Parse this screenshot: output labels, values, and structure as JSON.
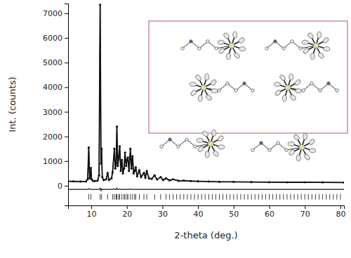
{
  "chart_data": {
    "type": "line",
    "x_label": "2-theta (deg.)",
    "y_label": "Int. (counts)",
    "xlim": [
      3.5,
      81
    ],
    "xticks": [
      10,
      20,
      30,
      40,
      50,
      60,
      70,
      80
    ],
    "ylim": [
      -800,
      7400
    ],
    "yticks": [
      0,
      1000,
      2000,
      3000,
      4000,
      5000,
      6000,
      7000
    ],
    "grid": false,
    "color": "#111111",
    "series": [
      {
        "type": "scatter",
        "marker": "circle",
        "color": "#111111",
        "x": [
          3.5,
          5,
          7,
          8.5,
          9.0,
          9.3,
          9.55,
          9.75,
          9.9,
          10.1,
          10.5,
          11,
          11.8,
          12.2,
          12.5,
          12.75,
          12.9,
          13.1,
          13.5,
          14.2,
          14.6,
          15,
          15.7,
          16.0,
          16.5,
          16.75,
          17.0,
          17.2,
          17.45,
          17.7,
          18.0,
          18.3,
          18.6,
          18.9,
          19.2,
          19.5,
          19.8,
          20.05,
          20.3,
          20.6,
          21.0,
          21.3,
          21.6,
          21.9,
          22.2,
          22.5,
          22.9,
          23.5,
          24.0,
          24.8,
          25.2,
          25.6,
          26.2,
          27.0,
          27.8,
          28.5,
          29.5,
          30.2,
          31.0,
          32,
          33,
          34.5,
          36,
          38,
          40,
          43,
          46,
          50,
          55,
          60,
          65,
          70,
          75,
          81
        ],
        "values": [
          180,
          175,
          170,
          175,
          260,
          1550,
          300,
          420,
          720,
          260,
          200,
          190,
          210,
          420,
          7350,
          900,
          1500,
          350,
          230,
          260,
          520,
          230,
          300,
          550,
          1500,
          700,
          900,
          2400,
          800,
          1100,
          1600,
          600,
          1050,
          500,
          700,
          1350,
          800,
          1050,
          1150,
          600,
          1500,
          700,
          1200,
          500,
          600,
          750,
          380,
          620,
          350,
          520,
          330,
          600,
          300,
          280,
          420,
          250,
          350,
          230,
          300,
          220,
          260,
          200,
          210,
          190,
          180,
          170,
          160,
          155,
          150,
          145,
          140,
          140,
          135,
          130
        ]
      },
      {
        "type": "line",
        "line_style": "solid",
        "color": "#111111",
        "x": [
          3.5,
          5,
          7,
          8.5,
          9.0,
          9.3,
          9.55,
          9.75,
          9.9,
          10.1,
          10.5,
          11,
          11.8,
          12.2,
          12.5,
          12.75,
          12.9,
          13.1,
          13.5,
          14.2,
          14.6,
          15,
          15.7,
          16.0,
          16.5,
          16.75,
          17.0,
          17.2,
          17.45,
          17.7,
          18.0,
          18.3,
          18.6,
          18.9,
          19.2,
          19.5,
          19.8,
          20.05,
          20.3,
          20.6,
          21.0,
          21.3,
          21.6,
          21.9,
          22.2,
          22.5,
          22.9,
          23.5,
          24.0,
          24.8,
          25.2,
          25.6,
          26.2,
          27.0,
          27.8,
          28.5,
          29.5,
          30.2,
          31.0,
          32,
          33,
          34.5,
          36,
          38,
          40,
          43,
          46,
          50,
          55,
          60,
          65,
          70,
          75,
          81
        ],
        "values": [
          180,
          175,
          170,
          175,
          260,
          1520,
          300,
          420,
          720,
          260,
          200,
          190,
          210,
          420,
          7300,
          950,
          1480,
          350,
          230,
          260,
          520,
          230,
          300,
          550,
          1480,
          700,
          900,
          2350,
          800,
          1100,
          1580,
          600,
          1050,
          500,
          700,
          1350,
          800,
          1050,
          1150,
          600,
          1480,
          700,
          1200,
          500,
          600,
          750,
          380,
          620,
          350,
          520,
          330,
          600,
          300,
          280,
          420,
          250,
          350,
          230,
          300,
          220,
          260,
          200,
          210,
          190,
          180,
          170,
          160,
          155,
          150,
          145,
          140,
          140,
          135,
          130
        ]
      },
      {
        "type": "line",
        "line_style": "solid",
        "color": "#111111",
        "x": [
          3.5,
          5,
          7,
          8.5,
          9.0,
          9.3,
          9.55,
          9.75,
          9.9,
          10.1,
          10.5,
          11,
          11.8,
          12.2,
          12.5,
          12.75,
          12.9,
          13.1,
          13.5,
          14.2,
          14.6,
          15,
          15.7,
          16.0,
          16.5,
          16.75,
          17.0,
          17.2,
          17.45,
          17.7,
          18.0,
          18.3,
          18.6,
          18.9,
          19.2,
          19.5,
          19.8,
          20.05,
          20.3,
          20.6,
          21.0,
          21.3,
          21.6,
          21.9,
          22.2,
          22.5,
          22.9,
          23.5,
          24.0,
          24.8,
          25.2,
          25.6,
          26.2,
          27.0,
          27.8,
          28.5,
          29.5,
          30.2,
          31.0,
          32,
          33,
          34.5,
          36,
          38,
          40,
          43,
          46,
          50,
          55,
          60,
          65,
          70,
          75,
          81
        ],
        "values": [
          -150,
          -150,
          -150,
          -150,
          -150,
          -120,
          -150,
          -150,
          -150,
          -150,
          -150,
          -150,
          -150,
          -150,
          -100,
          -200,
          -130,
          -150,
          -150,
          -150,
          -150,
          -150,
          -150,
          -150,
          -130,
          -150,
          -150,
          -100,
          -150,
          -150,
          -130,
          -150,
          -150,
          -150,
          -150,
          -150,
          -150,
          -150,
          -150,
          -150,
          -130,
          -150,
          -150,
          -150,
          -150,
          -150,
          -150,
          -150,
          -150,
          -150,
          -150,
          -150,
          -150,
          -150,
          -150,
          -150,
          -150,
          -150,
          -150,
          -150,
          -150,
          -150,
          -150,
          -150,
          -150,
          -150,
          -150,
          -150,
          -150,
          -150,
          -150,
          -150,
          -150,
          -150
        ]
      }
    ],
    "reflections": [
      9.3,
      9.9,
      12.5,
      12.9,
      14.6,
      16.0,
      16.5,
      17.0,
      17.2,
      17.7,
      18.0,
      18.6,
      19.2,
      19.5,
      20.05,
      20.3,
      21.0,
      21.6,
      22.2,
      22.5,
      23.5,
      24.8,
      25.6,
      27.8,
      29.5,
      31,
      32,
      33,
      34,
      35,
      36,
      37,
      38,
      39,
      40,
      41,
      42,
      43,
      44,
      45,
      46,
      47,
      48,
      49,
      50,
      51,
      52,
      53,
      54,
      55,
      56,
      57,
      58,
      59,
      60,
      61,
      62,
      63,
      64,
      65,
      66,
      67,
      68,
      69,
      70,
      71,
      72,
      73,
      74,
      75,
      76,
      77,
      78,
      79,
      80
    ],
    "reflection_y": -450
  }
}
